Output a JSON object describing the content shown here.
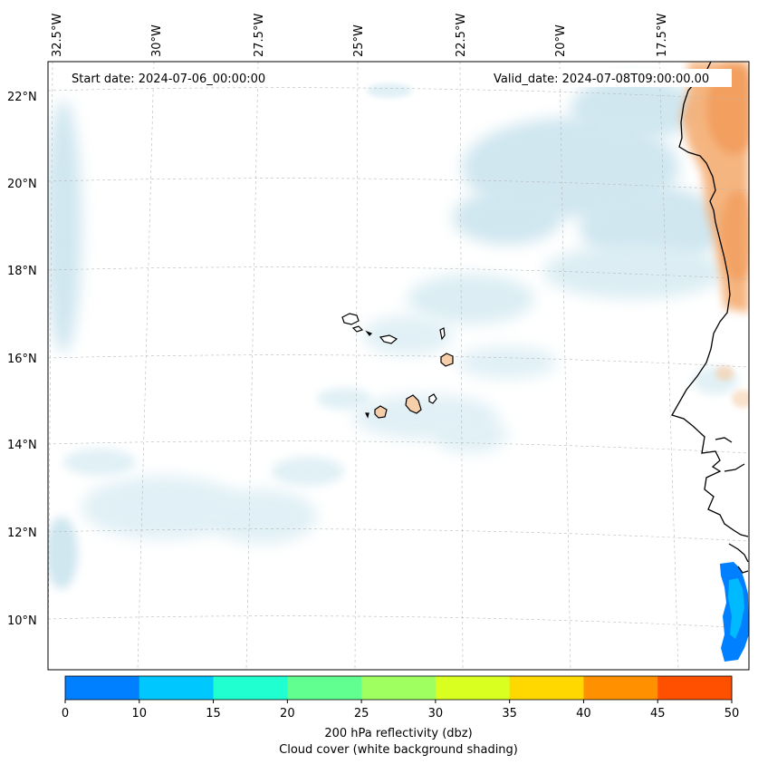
{
  "header": {
    "start_date": "Start date: 2024-07-06_00:00:00",
    "valid_date": "Valid_date: 2024-07-08T09:00:00.00"
  },
  "map": {
    "lon_labels": [
      "32.5°W",
      "30°W",
      "27.5°W",
      "25°W",
      "22.5°W",
      "20°W",
      "17.5°W"
    ],
    "lat_labels": [
      "22°N",
      "20°N",
      "18°N",
      "16°N",
      "14°N",
      "12°N",
      "10°N"
    ],
    "gridlines": "dashed",
    "colors": {
      "cloud": "#a9d3e3",
      "warm": "#f4a86a",
      "coast": "#000000",
      "island_fill": "#f6cfaa",
      "precip_light": "#0096f5",
      "precip_dark": "#0080ff"
    }
  },
  "colorbar": {
    "ticks": [
      "0",
      "10",
      "15",
      "20",
      "25",
      "30",
      "35",
      "40",
      "45",
      "50"
    ],
    "colors": [
      "#0080ff",
      "#00c8ff",
      "#20ffd0",
      "#60ff90",
      "#a0ff60",
      "#d8ff20",
      "#ffd800",
      "#ff9000",
      "#ff5000"
    ],
    "label_line1": "200 hPa reflectivity (dbz)",
    "label_line2": "Cloud cover (white background shading)"
  }
}
